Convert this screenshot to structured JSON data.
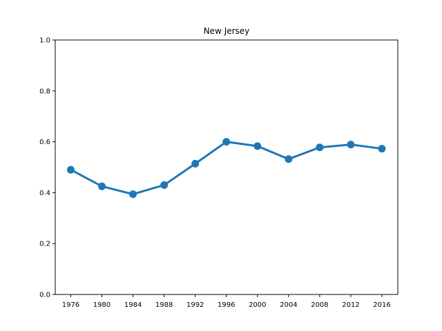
{
  "chart_data": {
    "type": "line",
    "title": "New Jersey",
    "xlabel": "",
    "ylabel": "",
    "categories": [
      "1976",
      "1980",
      "1984",
      "1988",
      "1992",
      "1996",
      "2000",
      "2004",
      "2008",
      "2012",
      "2016"
    ],
    "series": [
      {
        "values": [
          0.49,
          0.425,
          0.394,
          0.43,
          0.514,
          0.6,
          0.583,
          0.532,
          0.578,
          0.589,
          0.573
        ]
      }
    ],
    "ylim": [
      0,
      1
    ],
    "yticks": [
      "0.0",
      "0.2",
      "0.4",
      "0.6",
      "0.8",
      "1.0"
    ],
    "grid": false,
    "legend": "none",
    "colors": {
      "line": "#1f77b4"
    }
  }
}
